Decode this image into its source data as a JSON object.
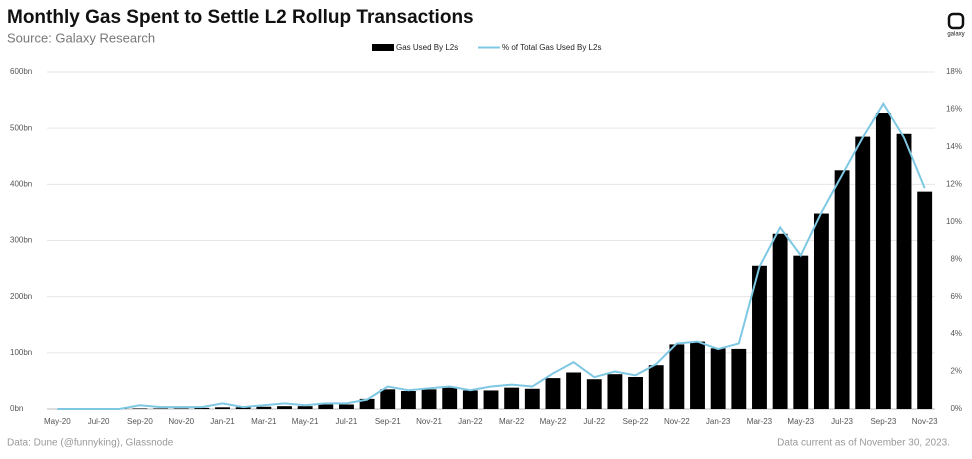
{
  "chart_data": {
    "type": "bar-line",
    "title": "Monthly Gas Spent to Settle L2 Rollup Transactions",
    "subtitle": "Source: Galaxy Research",
    "logo_text": "galaxy",
    "footer_left": "Data: Dune (@funnyking), Glassnode",
    "footer_right": "Data current as of November 30, 2023.",
    "categories": [
      "May-20",
      null,
      "Jul-20",
      null,
      "Sep-20",
      null,
      "Nov-20",
      null,
      "Jan-21",
      null,
      "Mar-21",
      null,
      "May-21",
      null,
      "Jul-21",
      null,
      "Sep-21",
      null,
      "Nov-21",
      null,
      "Jan-22",
      null,
      "Mar-22",
      null,
      "May-22",
      null,
      "Jul-22",
      null,
      "Sep-22",
      null,
      "Nov-22",
      null,
      "Jan-23",
      null,
      "Mar-23",
      null,
      "May-23",
      null,
      "Jul-23",
      null,
      "Sep-23",
      null,
      "Nov-23"
    ],
    "series": [
      {
        "name": "Gas Used By L2s",
        "type": "bar",
        "color": "#000000",
        "values": [
          0,
          0,
          0,
          1,
          1,
          1,
          1,
          2,
          3,
          3,
          4,
          5,
          5,
          8,
          8,
          18,
          35,
          32,
          35,
          38,
          33,
          33,
          38,
          36,
          55,
          65,
          53,
          62,
          57,
          78,
          115,
          120,
          108,
          107,
          255,
          312,
          273,
          348,
          425,
          485,
          527,
          490,
          387
        ]
      },
      {
        "name": "% of Total Gas Used By L2s",
        "type": "line",
        "axis": "y2",
        "color": "#7ec8e3",
        "values": [
          0,
          0,
          0,
          0,
          0.2,
          0.1,
          0.1,
          0.1,
          0.3,
          0.1,
          0.2,
          0.3,
          0.2,
          0.3,
          0.3,
          0.5,
          1.2,
          1.0,
          1.1,
          1.2,
          1.0,
          1.2,
          1.3,
          1.2,
          1.9,
          2.5,
          1.7,
          2.0,
          1.8,
          2.4,
          3.5,
          3.6,
          3.2,
          3.5,
          7.6,
          9.7,
          8.2,
          10.5,
          12.5,
          14.5,
          16.3,
          14.5,
          11.8
        ]
      }
    ],
    "ylim": [
      0,
      600
    ],
    "yticks": [
      {
        "value": 0,
        "label": "0bn"
      },
      {
        "value": 100,
        "label": "100bn"
      },
      {
        "value": 200,
        "label": "200bn"
      },
      {
        "value": 300,
        "label": "300bn"
      },
      {
        "value": 400,
        "label": "400bn"
      },
      {
        "value": 500,
        "label": "500bn"
      },
      {
        "value": 600,
        "label": "600bn"
      }
    ],
    "y2lim": [
      0,
      18
    ],
    "y2ticks": [
      {
        "value": 0,
        "label": "0%"
      },
      {
        "value": 2,
        "label": "2%"
      },
      {
        "value": 4,
        "label": "4%"
      },
      {
        "value": 6,
        "label": "6%"
      },
      {
        "value": 8,
        "label": "8%"
      },
      {
        "value": 10,
        "label": "10%"
      },
      {
        "value": 12,
        "label": "12%"
      },
      {
        "value": 14,
        "label": "14%"
      },
      {
        "value": 16,
        "label": "16%"
      },
      {
        "value": 18,
        "label": "18%"
      }
    ],
    "grid": true
  }
}
